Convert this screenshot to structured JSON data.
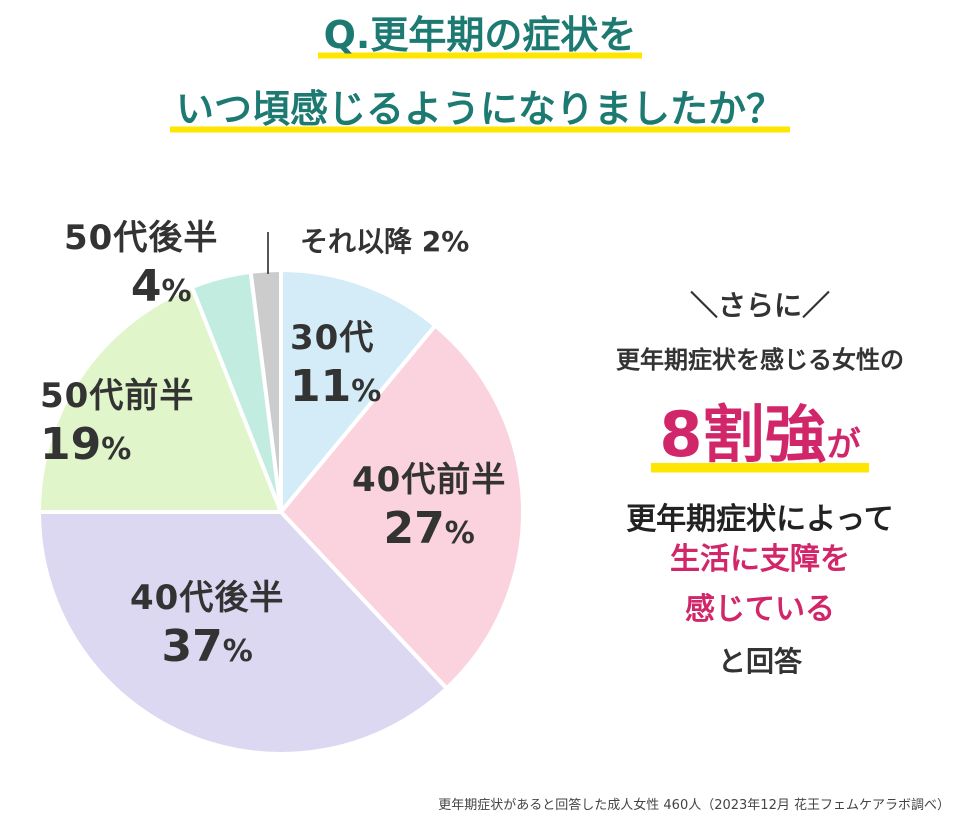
{
  "title": {
    "line1": "Q.更年期の症状を",
    "line2": "いつ頃感じるようになりましたか？"
  },
  "chart_data": {
    "type": "pie",
    "title": "Q.更年期の症状を いつ頃感じるようになりましたか？",
    "slices": [
      {
        "label": "30代",
        "value": 11,
        "display": "11",
        "color": "#d4ecf8"
      },
      {
        "label": "40代前半",
        "value": 27,
        "display": "27",
        "color": "#fbd3de"
      },
      {
        "label": "40代後半",
        "value": 37,
        "display": "37",
        "color": "#ddd8f2"
      },
      {
        "label": "50代前半",
        "value": 19,
        "display": "19",
        "color": "#e0f5c9"
      },
      {
        "label": "50代後半",
        "value": 4,
        "display": "4",
        "color": "#c2ece0"
      },
      {
        "label": "それ以降",
        "value": 2,
        "display": "2",
        "color": "#cccccc"
      }
    ],
    "unit": "%",
    "after_label": "それ以降 2%"
  },
  "callout": {
    "sarani": "＼さらに／",
    "line1": "更年期症状を感じる女性の",
    "highlight": "8割強",
    "ga": "が",
    "line2": "更年期症状によって",
    "pink1": "生活に支障を",
    "pink2": "感じている",
    "answer": "と回答"
  },
  "source": "更年期症状があると回答した成人女性 460人（2023年12月 花王フェムケアラボ調べ）"
}
